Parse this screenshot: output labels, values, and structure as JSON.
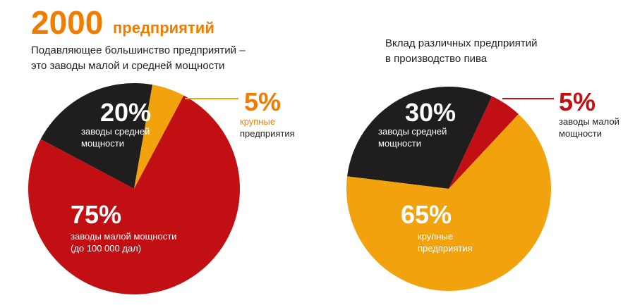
{
  "headline": {
    "number": "2000",
    "text": "предприятий"
  },
  "chart_data": [
    {
      "type": "pie",
      "subtitle": [
        "Подавляющее большинство предприятий –",
        "это заводы малой и средней мощности"
      ],
      "categories": [
        [
          "заводы средней",
          "мощности"
        ],
        [
          "крупные",
          "предприятия"
        ],
        [
          "заводы малой мощности",
          "(до 100 000 дал)"
        ]
      ],
      "values": [
        20,
        5,
        75
      ],
      "value_labels": [
        "20%",
        "5%",
        "75%"
      ],
      "colors": [
        "#1f1d1d",
        "#f2a20c",
        "#c20f14"
      ]
    },
    {
      "type": "pie",
      "subtitle": [
        "Вклад различных предприятий",
        "в производство пива"
      ],
      "categories": [
        [
          "заводы средней",
          "мощности"
        ],
        [
          "заводы малой",
          "мощности"
        ],
        [
          "крупные",
          "предприятия"
        ]
      ],
      "values": [
        30,
        5,
        65
      ],
      "value_labels": [
        "30%",
        "5%",
        "65%"
      ],
      "colors": [
        "#1f1d1d",
        "#c20f14",
        "#f2a20c"
      ]
    }
  ]
}
